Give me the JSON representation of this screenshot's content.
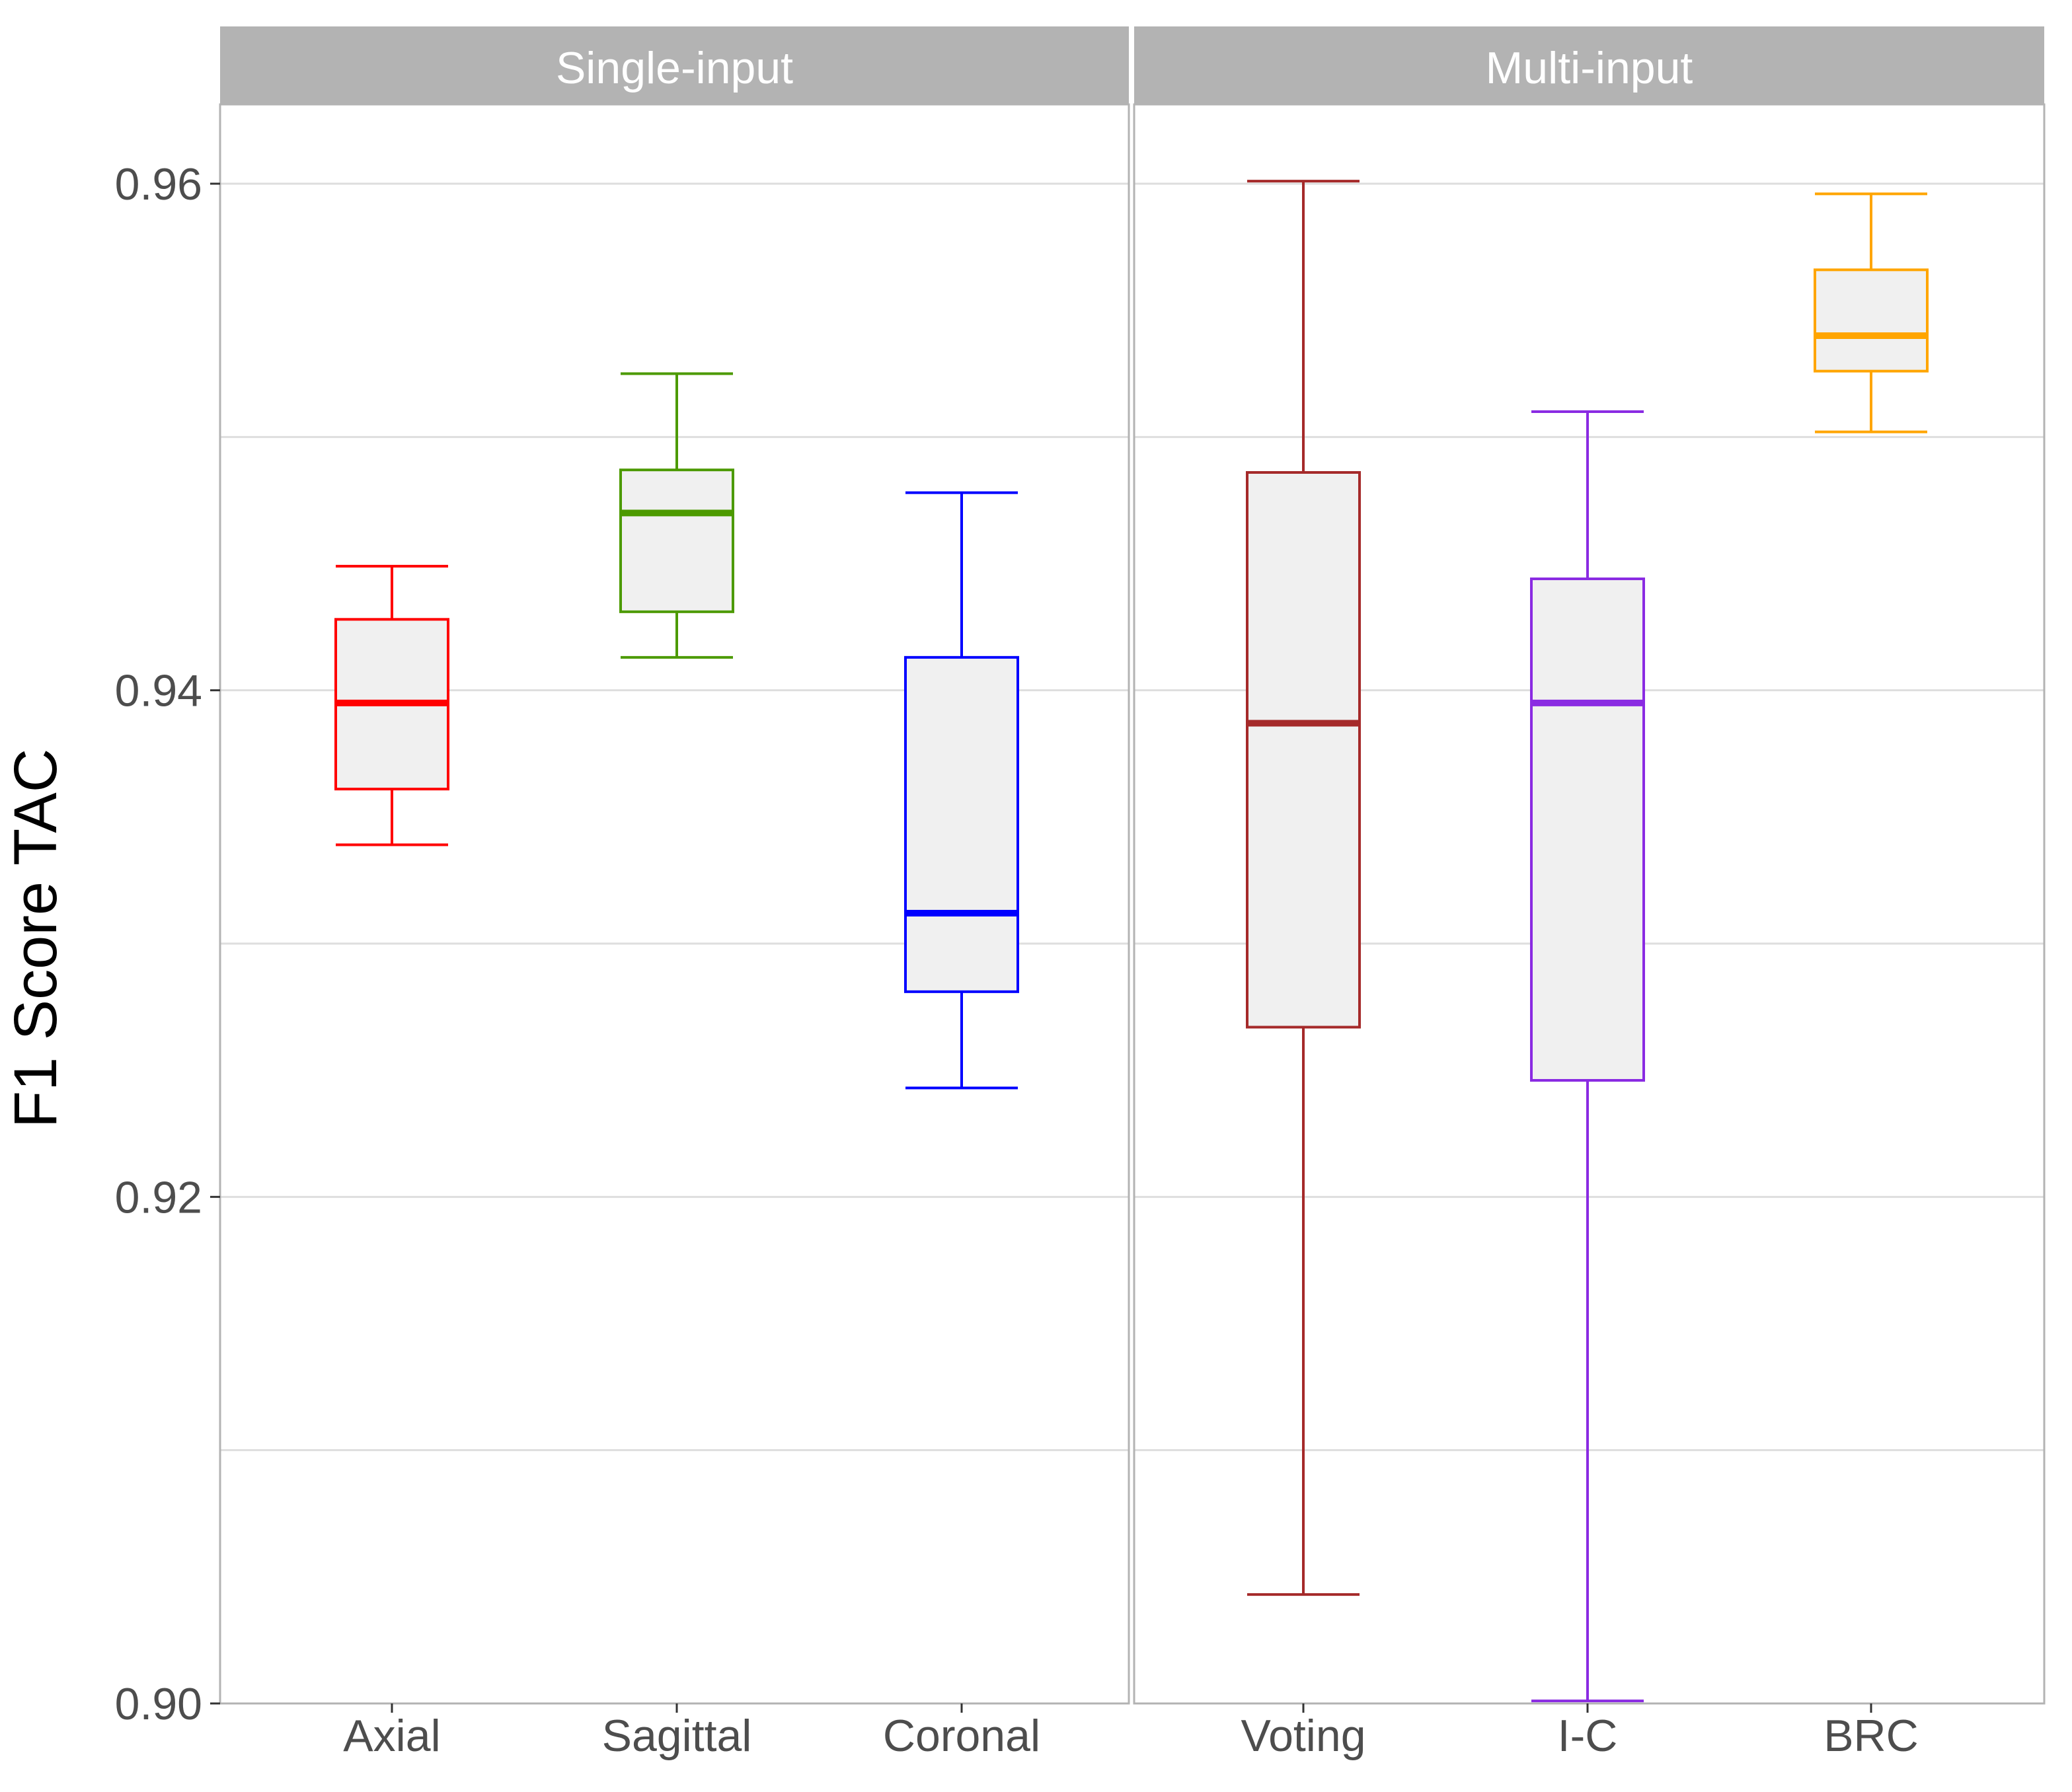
{
  "chart_data": {
    "type": "boxplot",
    "title": "",
    "xlabel": "",
    "ylabel": "F1 Score TAC",
    "ylim": [
      0.9,
      0.963
    ],
    "yticks": [
      {
        "value": 0.9,
        "label": "0.90"
      },
      {
        "value": 0.92,
        "label": "0.92"
      },
      {
        "value": 0.94,
        "label": "0.94"
      },
      {
        "value": 0.96,
        "label": "0.96"
      }
    ],
    "minor_gridlines": [
      0.91,
      0.93,
      0.95
    ],
    "grid": true,
    "box_fill": "#f0f0f0",
    "panel_strip_color": "#b3b3b3",
    "panels": [
      {
        "name": "Single-input",
        "categories": [
          {
            "name": "Axial",
            "color": "#ff0000",
            "min": 0.9339,
            "q1": 0.9361,
            "median": 0.9395,
            "q3": 0.9428,
            "max": 0.9449
          },
          {
            "name": "Sagittal",
            "color": "#4c9a00",
            "min": 0.9413,
            "q1": 0.9431,
            "median": 0.947,
            "q3": 0.9487,
            "max": 0.9525
          },
          {
            "name": "Coronal",
            "color": "#0000ff",
            "min": 0.9243,
            "q1": 0.9281,
            "median": 0.9312,
            "q3": 0.9413,
            "max": 0.9478
          }
        ]
      },
      {
        "name": "Multi-input",
        "categories": [
          {
            "name": "Voting",
            "color": "#a52a2a",
            "min": 0.9043,
            "q1": 0.9267,
            "median": 0.9387,
            "q3": 0.9486,
            "max": 0.9601
          },
          {
            "name": "I-C",
            "color": "#8a2be2",
            "min": 0.9001,
            "q1": 0.9246,
            "median": 0.9395,
            "q3": 0.9444,
            "max": 0.951
          },
          {
            "name": "BRC",
            "color": "#ffa500",
            "min": 0.9502,
            "q1": 0.9526,
            "median": 0.954,
            "q3": 0.9566,
            "max": 0.9596
          }
        ]
      }
    ]
  }
}
